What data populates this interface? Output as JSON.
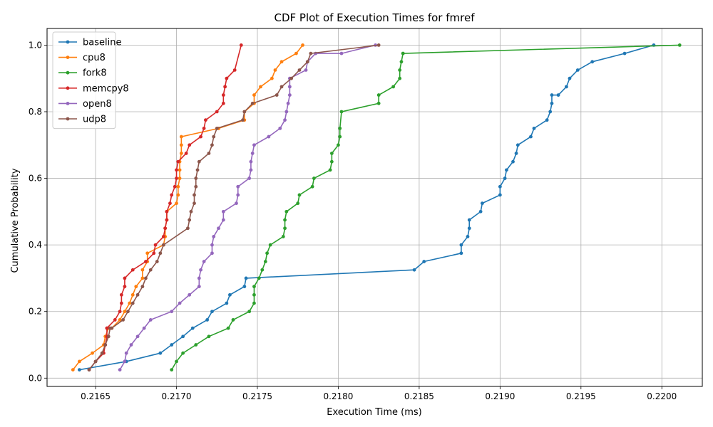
{
  "chart_data": {
    "type": "line",
    "title": "CDF Plot of Execution Times for fmref",
    "xlabel": "Execution Time (ms)",
    "ylabel": "Cumulative Probability",
    "xlim": [
      0.2162,
      0.22025
    ],
    "ylim": [
      -0.025,
      1.05
    ],
    "xticks": [
      {
        "value": 0.2165,
        "label": "0.2165"
      },
      {
        "value": 0.217,
        "label": "0.2170"
      },
      {
        "value": 0.2175,
        "label": "0.2175"
      },
      {
        "value": 0.218,
        "label": "0.2180"
      },
      {
        "value": 0.2185,
        "label": "0.2185"
      },
      {
        "value": 0.219,
        "label": "0.2190"
      },
      {
        "value": 0.2195,
        "label": "0.2195"
      },
      {
        "value": 0.22,
        "label": "0.2200"
      }
    ],
    "yticks": [
      {
        "value": 0.0,
        "label": "0.0"
      },
      {
        "value": 0.2,
        "label": "0.2"
      },
      {
        "value": 0.4,
        "label": "0.4"
      },
      {
        "value": 0.6,
        "label": "0.6"
      },
      {
        "value": 0.8,
        "label": "0.8"
      },
      {
        "value": 1.0,
        "label": "1.0"
      }
    ],
    "grid": true,
    "legend_position": "top-left",
    "series": [
      {
        "name": "baseline",
        "color": "#1f77b4",
        "x": [
          0.2164,
          0.21669,
          0.2169,
          0.21697,
          0.21704,
          0.2171,
          0.21719,
          0.21722,
          0.21731,
          0.21733,
          0.21742,
          0.21743,
          0.21847,
          0.21853,
          0.21876,
          0.21876,
          0.2188,
          0.21881,
          0.21881,
          0.21888,
          0.21889,
          0.219,
          0.219,
          0.21903,
          0.21904,
          0.21908,
          0.2191,
          0.21911,
          0.21919,
          0.21921,
          0.21929,
          0.21931,
          0.21932,
          0.21932,
          0.21936,
          0.21941,
          0.21943,
          0.21948,
          0.21957,
          0.21977,
          0.21995
        ],
        "y": [
          0.025,
          0.05,
          0.075,
          0.1,
          0.125,
          0.15,
          0.175,
          0.2,
          0.225,
          0.25,
          0.275,
          0.3,
          0.325,
          0.35,
          0.375,
          0.4,
          0.425,
          0.45,
          0.475,
          0.5,
          0.525,
          0.55,
          0.575,
          0.6,
          0.625,
          0.65,
          0.675,
          0.7,
          0.725,
          0.75,
          0.775,
          0.8,
          0.825,
          0.85,
          0.85,
          0.875,
          0.9,
          0.925,
          0.95,
          0.975,
          1.0
        ]
      },
      {
        "name": "cpu8",
        "color": "#ff7f0e",
        "x": [
          0.21636,
          0.2164,
          0.21648,
          0.21655,
          0.21656,
          0.21658,
          0.2166,
          0.21665,
          0.21668,
          0.21671,
          0.21673,
          0.21675,
          0.21679,
          0.21679,
          0.21682,
          0.21682,
          0.21692,
          0.21693,
          0.21693,
          0.21694,
          0.21694,
          0.217,
          0.21701,
          0.21701,
          0.21702,
          0.21702,
          0.21702,
          0.21703,
          0.21703,
          0.21703,
          0.21726,
          0.21726,
          0.21742,
          0.21742,
          0.21748,
          0.21748,
          0.21752,
          0.21759,
          0.21761,
          0.21765,
          0.21774,
          0.21778
        ],
        "y": [
          0.025,
          0.05,
          0.075,
          0.1,
          0.125,
          0.15,
          0.15,
          0.175,
          0.2,
          0.225,
          0.25,
          0.275,
          0.3,
          0.325,
          0.35,
          0.375,
          0.4,
          0.425,
          0.45,
          0.475,
          0.5,
          0.525,
          0.55,
          0.575,
          0.6,
          0.625,
          0.65,
          0.675,
          0.7,
          0.725,
          0.75,
          0.75,
          0.775,
          0.8,
          0.825,
          0.85,
          0.875,
          0.9,
          0.925,
          0.95,
          0.975,
          1.0
        ]
      },
      {
        "name": "fork8",
        "color": "#2ca02c",
        "x": [
          0.21697,
          0.217,
          0.21704,
          0.21712,
          0.2172,
          0.21732,
          0.21735,
          0.21745,
          0.21748,
          0.21748,
          0.21748,
          0.21751,
          0.21753,
          0.21755,
          0.21756,
          0.21758,
          0.21766,
          0.21767,
          0.21767,
          0.21768,
          0.21775,
          0.21776,
          0.21784,
          0.21785,
          0.21795,
          0.21796,
          0.21796,
          0.218,
          0.21801,
          0.21801,
          0.21802,
          0.21825,
          0.21825,
          0.21834,
          0.21838,
          0.21838,
          0.21839,
          0.2184,
          0.2184,
          0.22011
        ],
        "y": [
          0.025,
          0.05,
          0.075,
          0.1,
          0.125,
          0.15,
          0.175,
          0.2,
          0.225,
          0.25,
          0.275,
          0.3,
          0.325,
          0.35,
          0.375,
          0.4,
          0.425,
          0.45,
          0.475,
          0.5,
          0.525,
          0.55,
          0.575,
          0.6,
          0.625,
          0.65,
          0.675,
          0.7,
          0.725,
          0.75,
          0.8,
          0.825,
          0.85,
          0.875,
          0.9,
          0.925,
          0.95,
          0.975,
          0.975,
          1.0
        ]
      },
      {
        "name": "memcpy8",
        "color": "#d62728",
        "x": [
          0.21646,
          0.2165,
          0.21655,
          0.21656,
          0.21656,
          0.21657,
          0.21657,
          0.21657,
          0.21662,
          0.21665,
          0.21666,
          0.21666,
          0.21668,
          0.21668,
          0.21673,
          0.21681,
          0.21686,
          0.21687,
          0.21692,
          0.21693,
          0.21694,
          0.21694,
          0.21696,
          0.21697,
          0.21699,
          0.217,
          0.217,
          0.21701,
          0.21706,
          0.21708,
          0.21715,
          0.21717,
          0.21718,
          0.21725,
          0.21729,
          0.21729,
          0.2173,
          0.21731,
          0.21736,
          0.2174
        ],
        "y": [
          0.025,
          0.05,
          0.075,
          0.1,
          0.1,
          0.125,
          0.15,
          0.15,
          0.175,
          0.2,
          0.225,
          0.25,
          0.275,
          0.3,
          0.325,
          0.35,
          0.375,
          0.4,
          0.425,
          0.45,
          0.475,
          0.5,
          0.525,
          0.55,
          0.575,
          0.6,
          0.625,
          0.65,
          0.675,
          0.7,
          0.725,
          0.75,
          0.775,
          0.8,
          0.825,
          0.85,
          0.875,
          0.9,
          0.925,
          1.0
        ]
      },
      {
        "name": "open8",
        "color": "#9467bd",
        "x": [
          0.21665,
          0.21668,
          0.21669,
          0.21672,
          0.21676,
          0.2168,
          0.21684,
          0.21697,
          0.21702,
          0.21708,
          0.21714,
          0.21714,
          0.21715,
          0.21717,
          0.21722,
          0.21722,
          0.21723,
          0.21726,
          0.21729,
          0.21729,
          0.21737,
          0.21738,
          0.21738,
          0.21745,
          0.21746,
          0.21746,
          0.21747,
          0.21748,
          0.21757,
          0.21764,
          0.21767,
          0.21768,
          0.21769,
          0.2177,
          0.2177,
          0.2177,
          0.2178,
          0.21781,
          0.21786,
          0.21802,
          0.21823
        ],
        "y": [
          0.025,
          0.05,
          0.075,
          0.1,
          0.125,
          0.15,
          0.175,
          0.2,
          0.225,
          0.25,
          0.275,
          0.3,
          0.325,
          0.35,
          0.375,
          0.4,
          0.425,
          0.45,
          0.475,
          0.5,
          0.525,
          0.55,
          0.575,
          0.6,
          0.625,
          0.65,
          0.675,
          0.7,
          0.725,
          0.75,
          0.775,
          0.8,
          0.825,
          0.85,
          0.875,
          0.9,
          0.925,
          0.95,
          0.975,
          0.975,
          1.0
        ]
      },
      {
        "name": "udp8",
        "color": "#8c564b",
        "x": [
          0.21646,
          0.2165,
          0.21654,
          0.21656,
          0.21658,
          0.21659,
          0.2166,
          0.21667,
          0.2167,
          0.21673,
          0.21676,
          0.21679,
          0.21681,
          0.21684,
          0.21688,
          0.2169,
          0.21692,
          0.21707,
          0.21708,
          0.21709,
          0.21711,
          0.21711,
          0.21712,
          0.21712,
          0.21713,
          0.21714,
          0.2172,
          0.21722,
          0.21723,
          0.21725,
          0.21741,
          0.21742,
          0.21747,
          0.21762,
          0.21765,
          0.21771,
          0.21776,
          0.21781,
          0.21783,
          0.21825
        ],
        "y": [
          0.025,
          0.05,
          0.075,
          0.1,
          0.125,
          0.15,
          0.15,
          0.175,
          0.2,
          0.225,
          0.25,
          0.275,
          0.3,
          0.325,
          0.35,
          0.375,
          0.4,
          0.45,
          0.475,
          0.5,
          0.525,
          0.55,
          0.575,
          0.6,
          0.625,
          0.65,
          0.675,
          0.7,
          0.725,
          0.75,
          0.775,
          0.8,
          0.825,
          0.85,
          0.875,
          0.9,
          0.925,
          0.95,
          0.975,
          1.0
        ]
      }
    ]
  }
}
